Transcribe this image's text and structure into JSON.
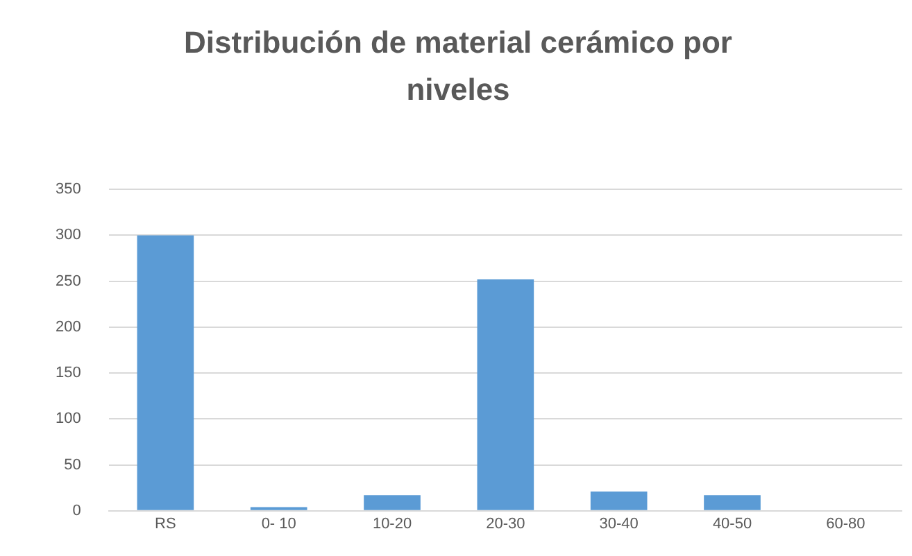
{
  "chart_data": {
    "type": "bar",
    "title": "Distribución de material cerámico por niveles",
    "categories": [
      "RS",
      "0- 10",
      "10-20",
      "20-30",
      "30-40",
      "40-50",
      "60-80"
    ],
    "values": [
      300,
      4,
      17,
      252,
      21,
      17,
      0
    ],
    "color": "#5b9bd5",
    "ylim": [
      0,
      350
    ],
    "yticks": [
      0,
      50,
      100,
      150,
      200,
      250,
      300,
      350
    ],
    "grid": "y"
  }
}
